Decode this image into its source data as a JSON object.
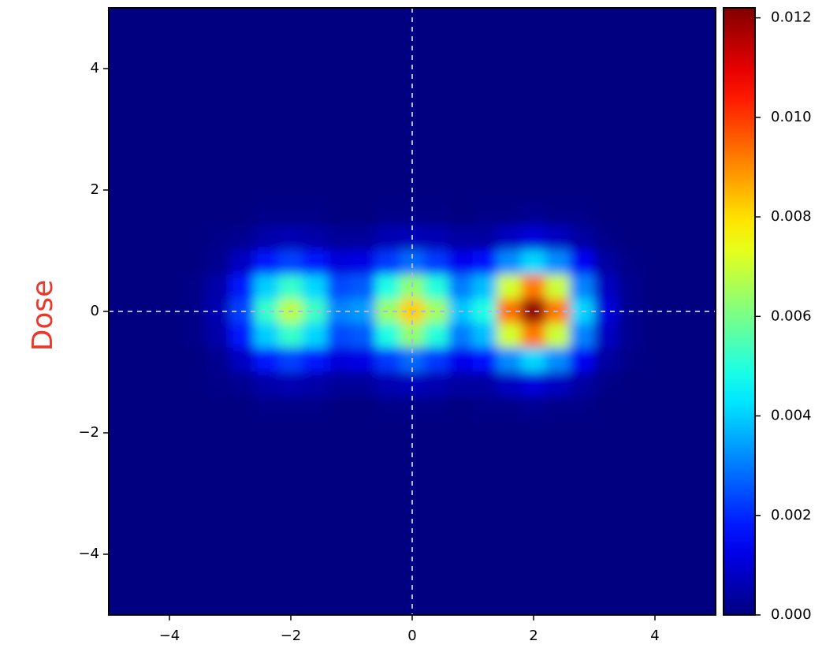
{
  "chart_data": {
    "type": "heatmap",
    "ylabel": "Dose",
    "colormap": "jet",
    "xlim": [
      -5,
      5
    ],
    "ylim": [
      -5,
      5
    ],
    "xticks": [
      {
        "value": -4,
        "label": "−4"
      },
      {
        "value": -2,
        "label": "−2"
      },
      0,
      2,
      4
    ],
    "yticks": [
      {
        "value": -4,
        "label": "−4"
      },
      {
        "value": -2,
        "label": "−2"
      },
      0,
      2,
      4
    ],
    "clim": [
      0,
      0.0122
    ],
    "cticks": [
      {
        "value": 0,
        "label": "0.000"
      },
      {
        "value": 0.002,
        "label": "0.002"
      },
      {
        "value": 0.004,
        "label": "0.004"
      },
      {
        "value": 0.006,
        "label": "0.006"
      },
      {
        "value": 0.008,
        "label": "0.008"
      },
      {
        "value": 0.01,
        "label": "0.010"
      },
      {
        "value": 0.012,
        "label": "0.012"
      }
    ],
    "vlines": [
      0
    ],
    "hlines": [
      0
    ],
    "x": [
      -4.8,
      -4.4,
      -4.0,
      -3.6,
      -3.2,
      -2.8,
      -2.4,
      -2.0,
      -1.6,
      -1.2,
      -0.8,
      -0.4,
      0,
      0.4,
      0.8,
      1.2,
      1.6,
      2.0,
      2.4,
      2.8,
      3.2,
      3.6,
      4.0,
      4.4,
      4.8
    ],
    "y": [
      4.8,
      4.4,
      4.0,
      3.6,
      3.2,
      2.8,
      2.4,
      2.0,
      1.6,
      1.2,
      0.8,
      0.4,
      0,
      -0.4,
      -0.8,
      -1.2,
      -1.6,
      -2.0,
      -2.4,
      -2.8,
      -3.2,
      -3.6,
      -4.0,
      -4.4,
      -4.8
    ],
    "z": [
      [
        0,
        0,
        0,
        0,
        0,
        0,
        0,
        0,
        0,
        0,
        0,
        0,
        0,
        0,
        0,
        0,
        0,
        0,
        0,
        0,
        0,
        0,
        0,
        0,
        0
      ],
      [
        0,
        0,
        0,
        0,
        0,
        0,
        0,
        0,
        0,
        0,
        0,
        0,
        0,
        0,
        0,
        0,
        0,
        0,
        0,
        0,
        0,
        0,
        0,
        0,
        0
      ],
      [
        0,
        0,
        0,
        0,
        0,
        0,
        0,
        0,
        0,
        0,
        0,
        0,
        0,
        0,
        0,
        0,
        0,
        0,
        0,
        0,
        0,
        0,
        0,
        0,
        0
      ],
      [
        0,
        0,
        0,
        0,
        0,
        0,
        0,
        0,
        0,
        0,
        0,
        0,
        0,
        0,
        0,
        0,
        0,
        0,
        0,
        0,
        0,
        0,
        0,
        0,
        0
      ],
      [
        0,
        0,
        0,
        0,
        0,
        0,
        0,
        0,
        0,
        0,
        0,
        0,
        0,
        0,
        0,
        0,
        0,
        0,
        0,
        0,
        0,
        0,
        0,
        0,
        0
      ],
      [
        0,
        0,
        0,
        0,
        0,
        0,
        0,
        0,
        0,
        0,
        0,
        0,
        0,
        0,
        0,
        0,
        0,
        0,
        0,
        0,
        0,
        0,
        0,
        0,
        0
      ],
      [
        0,
        0,
        0,
        0,
        0,
        0,
        0,
        0,
        0,
        0,
        0,
        0,
        0,
        0,
        0,
        0,
        0,
        0,
        0,
        0,
        0,
        0,
        0,
        0,
        0
      ],
      [
        0,
        0,
        0,
        0,
        0,
        0,
        0,
        0,
        0,
        0,
        0,
        0,
        0,
        0,
        0,
        0,
        0,
        0,
        0,
        0,
        0,
        0,
        0,
        0,
        0
      ],
      [
        0,
        0,
        0,
        0,
        0,
        0,
        0.0001,
        0.0001,
        0.0001,
        0,
        0,
        0.0001,
        0.0001,
        0.0001,
        0,
        0.0001,
        0.0001,
        0.0002,
        0.0001,
        0.0001,
        0,
        0,
        0,
        0,
        0
      ],
      [
        0,
        0,
        0,
        0,
        0.0001,
        0.0002,
        0.0005,
        0.0006,
        0.0005,
        0.0003,
        0.0003,
        0.0006,
        0.0007,
        0.0006,
        0.0004,
        0.0004,
        0.0008,
        0.0011,
        0.0008,
        0.0004,
        0.0001,
        0,
        0,
        0,
        0
      ],
      [
        0,
        0,
        0,
        0,
        0.0002,
        0.0008,
        0.0018,
        0.0023,
        0.0018,
        0.0011,
        0.0012,
        0.0022,
        0.0028,
        0.0022,
        0.0013,
        0.0017,
        0.0032,
        0.0041,
        0.0032,
        0.0014,
        0.0004,
        0.0001,
        0,
        0,
        0
      ],
      [
        0,
        0,
        0,
        0.0001,
        0.0005,
        0.0018,
        0.004,
        0.0052,
        0.0041,
        0.0024,
        0.0026,
        0.0049,
        0.0063,
        0.005,
        0.003,
        0.0038,
        0.0071,
        0.0092,
        0.007,
        0.0031,
        0.0008,
        0.0002,
        0,
        0,
        0
      ],
      [
        0,
        0,
        0,
        0.0001,
        0.0006,
        0.0023,
        0.0052,
        0.0068,
        0.0053,
        0.0031,
        0.0034,
        0.0064,
        0.0082,
        0.0065,
        0.0039,
        0.0049,
        0.0093,
        0.012,
        0.0092,
        0.0041,
        0.0011,
        0.0002,
        0,
        0,
        0
      ],
      [
        0,
        0,
        0,
        0.0001,
        0.0005,
        0.0018,
        0.004,
        0.0052,
        0.0041,
        0.0024,
        0.0026,
        0.0049,
        0.0063,
        0.005,
        0.003,
        0.0038,
        0.0071,
        0.0092,
        0.007,
        0.0031,
        0.0008,
        0.0002,
        0,
        0,
        0
      ],
      [
        0,
        0,
        0,
        0,
        0.0002,
        0.0008,
        0.0018,
        0.0023,
        0.0018,
        0.0011,
        0.0012,
        0.0022,
        0.0028,
        0.0022,
        0.0013,
        0.0017,
        0.0032,
        0.0041,
        0.0032,
        0.0014,
        0.0004,
        0.0001,
        0,
        0,
        0
      ],
      [
        0,
        0,
        0,
        0,
        0.0001,
        0.0002,
        0.0005,
        0.0006,
        0.0005,
        0.0003,
        0.0003,
        0.0006,
        0.0007,
        0.0006,
        0.0004,
        0.0004,
        0.0008,
        0.0011,
        0.0008,
        0.0004,
        0.0001,
        0,
        0,
        0,
        0
      ],
      [
        0,
        0,
        0,
        0,
        0,
        0,
        0.0001,
        0.0001,
        0.0001,
        0,
        0,
        0.0001,
        0.0001,
        0.0001,
        0,
        0.0001,
        0.0001,
        0.0002,
        0.0001,
        0.0001,
        0,
        0,
        0,
        0,
        0
      ],
      [
        0,
        0,
        0,
        0,
        0,
        0,
        0,
        0,
        0,
        0,
        0,
        0,
        0,
        0,
        0,
        0,
        0,
        0,
        0,
        0,
        0,
        0,
        0,
        0,
        0
      ],
      [
        0,
        0,
        0,
        0,
        0,
        0,
        0,
        0,
        0,
        0,
        0,
        0,
        0,
        0,
        0,
        0,
        0,
        0,
        0,
        0,
        0,
        0,
        0,
        0,
        0
      ],
      [
        0,
        0,
        0,
        0,
        0,
        0,
        0,
        0,
        0,
        0,
        0,
        0,
        0,
        0,
        0,
        0,
        0,
        0,
        0,
        0,
        0,
        0,
        0,
        0,
        0
      ],
      [
        0,
        0,
        0,
        0,
        0,
        0,
        0,
        0,
        0,
        0,
        0,
        0,
        0,
        0,
        0,
        0,
        0,
        0,
        0,
        0,
        0,
        0,
        0,
        0,
        0
      ],
      [
        0,
        0,
        0,
        0,
        0,
        0,
        0,
        0,
        0,
        0,
        0,
        0,
        0,
        0,
        0,
        0,
        0,
        0,
        0,
        0,
        0,
        0,
        0,
        0,
        0
      ],
      [
        0,
        0,
        0,
        0,
        0,
        0,
        0,
        0,
        0,
        0,
        0,
        0,
        0,
        0,
        0,
        0,
        0,
        0,
        0,
        0,
        0,
        0,
        0,
        0,
        0
      ],
      [
        0,
        0,
        0,
        0,
        0,
        0,
        0,
        0,
        0,
        0,
        0,
        0,
        0,
        0,
        0,
        0,
        0,
        0,
        0,
        0,
        0,
        0,
        0,
        0,
        0
      ],
      [
        0,
        0,
        0,
        0,
        0,
        0,
        0,
        0,
        0,
        0,
        0,
        0,
        0,
        0,
        0,
        0,
        0,
        0,
        0,
        0,
        0,
        0,
        0,
        0,
        0
      ]
    ]
  }
}
